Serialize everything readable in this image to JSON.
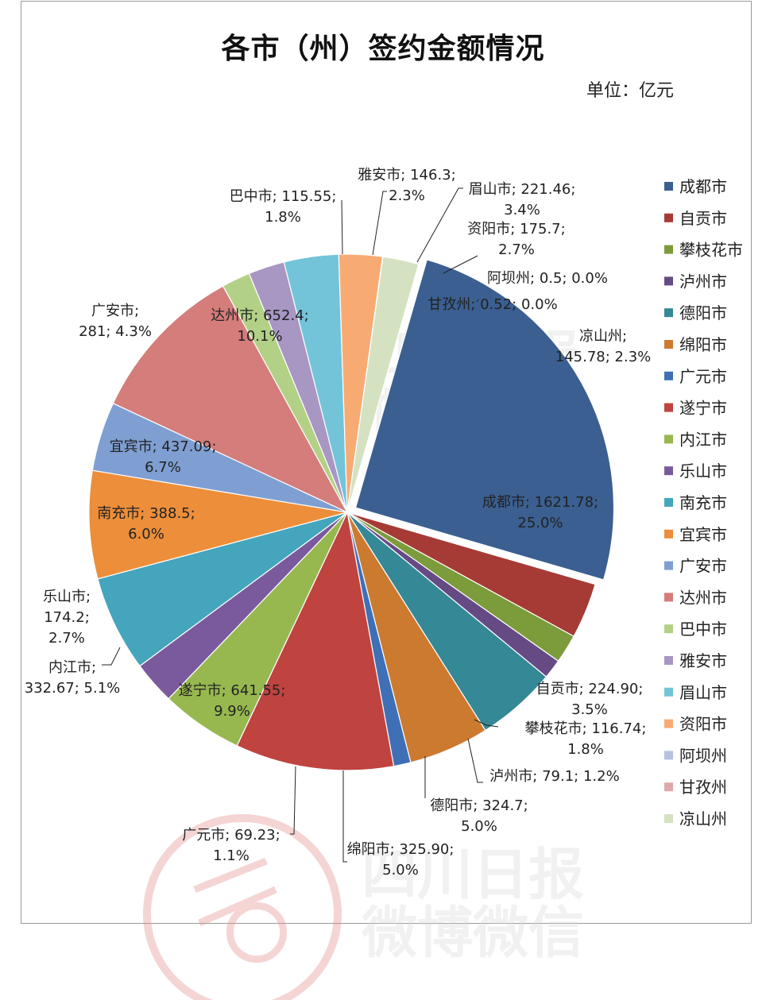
{
  "chart_data": {
    "type": "pie",
    "title": "各市（州）签约金额情况",
    "unit": "单位：亿元",
    "slices": [
      {
        "name": "成都市",
        "value": 1621.78,
        "percent": "25.0%",
        "color": "#3b5f91",
        "label": [
          "成都市; 1621.78;",
          "25.0%"
        ]
      },
      {
        "name": "自贡市",
        "value": 224.9,
        "percent": "3.5%",
        "color": "#a63b35",
        "label": [
          "自贡市; 224.90;",
          "3.5%"
        ]
      },
      {
        "name": "攀枝花市",
        "value": 116.74,
        "percent": "1.8%",
        "color": "#7c9b3b",
        "label": [
          "攀枝花市; 116.74;",
          "1.8%"
        ]
      },
      {
        "name": "泸州市",
        "value": 79.1,
        "percent": "1.2%",
        "color": "#654a84",
        "label": [
          "泸州市; 79.1; 1.2%"
        ]
      },
      {
        "name": "德阳市",
        "value": 324.7,
        "percent": "5.0%",
        "color": "#358896",
        "label": [
          "德阳市; 324.7;",
          "5.0%"
        ]
      },
      {
        "name": "绵阳市",
        "value": 325.9,
        "percent": "5.0%",
        "color": "#cc7a30",
        "label": [
          "绵阳市; 325.90;",
          "5.0%"
        ]
      },
      {
        "name": "广元市",
        "value": 69.23,
        "percent": "1.1%",
        "color": "#3f70b6",
        "label": [
          "广元市; 69.23;",
          "1.1%"
        ]
      },
      {
        "name": "遂宁市",
        "value": 641.55,
        "percent": "9.9%",
        "color": "#bf433f",
        "label": [
          "遂宁市; 641.55;",
          "9.9%"
        ]
      },
      {
        "name": "内江市",
        "value": 332.67,
        "percent": "5.1%",
        "color": "#97b84f",
        "label": [
          "内江市;",
          "332.67; 5.1%"
        ]
      },
      {
        "name": "乐山市",
        "value": 174.2,
        "percent": "2.7%",
        "color": "#7a5a9c",
        "label": [
          "乐山市;",
          "174.2;",
          "2.7%"
        ]
      },
      {
        "name": "南充市",
        "value": 388.5,
        "percent": "6.0%",
        "color": "#44a5bd",
        "label": [
          "南充市; 388.5;",
          "6.0%"
        ]
      },
      {
        "name": "宜宾市",
        "value": 437.09,
        "percent": "6.7%",
        "color": "#ec8e3a",
        "label": [
          "宜宾市; 437.09;",
          "6.7%"
        ]
      },
      {
        "name": "广安市",
        "value": 281,
        "percent": "4.3%",
        "color": "#7f9fd2",
        "label": [
          "广安市;",
          "281; 4.3%"
        ]
      },
      {
        "name": "达州市",
        "value": 652.4,
        "percent": "10.1%",
        "color": "#d47d7b",
        "label": [
          "达州市; 652.4;",
          "10.1%"
        ]
      },
      {
        "name": "巴中市",
        "value": 115.55,
        "percent": "1.8%",
        "color": "#b3d186",
        "label": [
          "巴中市; 115.55;",
          "1.8%"
        ]
      },
      {
        "name": "雅安市",
        "value": 146.3,
        "percent": "2.3%",
        "color": "#a896c3",
        "label": [
          "雅安市; 146.3;",
          "2.3%"
        ]
      },
      {
        "name": "眉山市",
        "value": 221.46,
        "percent": "3.4%",
        "color": "#73c4d8",
        "label": [
          "眉山市; 221.46;",
          "3.4%"
        ]
      },
      {
        "name": "资阳市",
        "value": 175.7,
        "percent": "2.7%",
        "color": "#f7ab73",
        "label": [
          "资阳市; 175.7;",
          "2.7%"
        ]
      },
      {
        "name": "阿坝州",
        "value": 0.5,
        "percent": "0.0%",
        "color": "#b5c3e0",
        "label": [
          "阿坝州; 0.5; 0.0%"
        ]
      },
      {
        "name": "甘孜州",
        "value": 0.52,
        "percent": "0.0%",
        "color": "#e0a9a9",
        "label": [
          "甘孜州; 0.52; 0.0%"
        ]
      },
      {
        "name": "凉山州",
        "value": 145.78,
        "percent": "2.3%",
        "color": "#d4e2c1",
        "label": [
          "凉山州;",
          "145.78; 2.3%"
        ]
      }
    ],
    "exploded": "成都市",
    "legend_position": "right"
  },
  "watermark": {
    "line1": "四川日报",
    "line2": "微博微信"
  }
}
